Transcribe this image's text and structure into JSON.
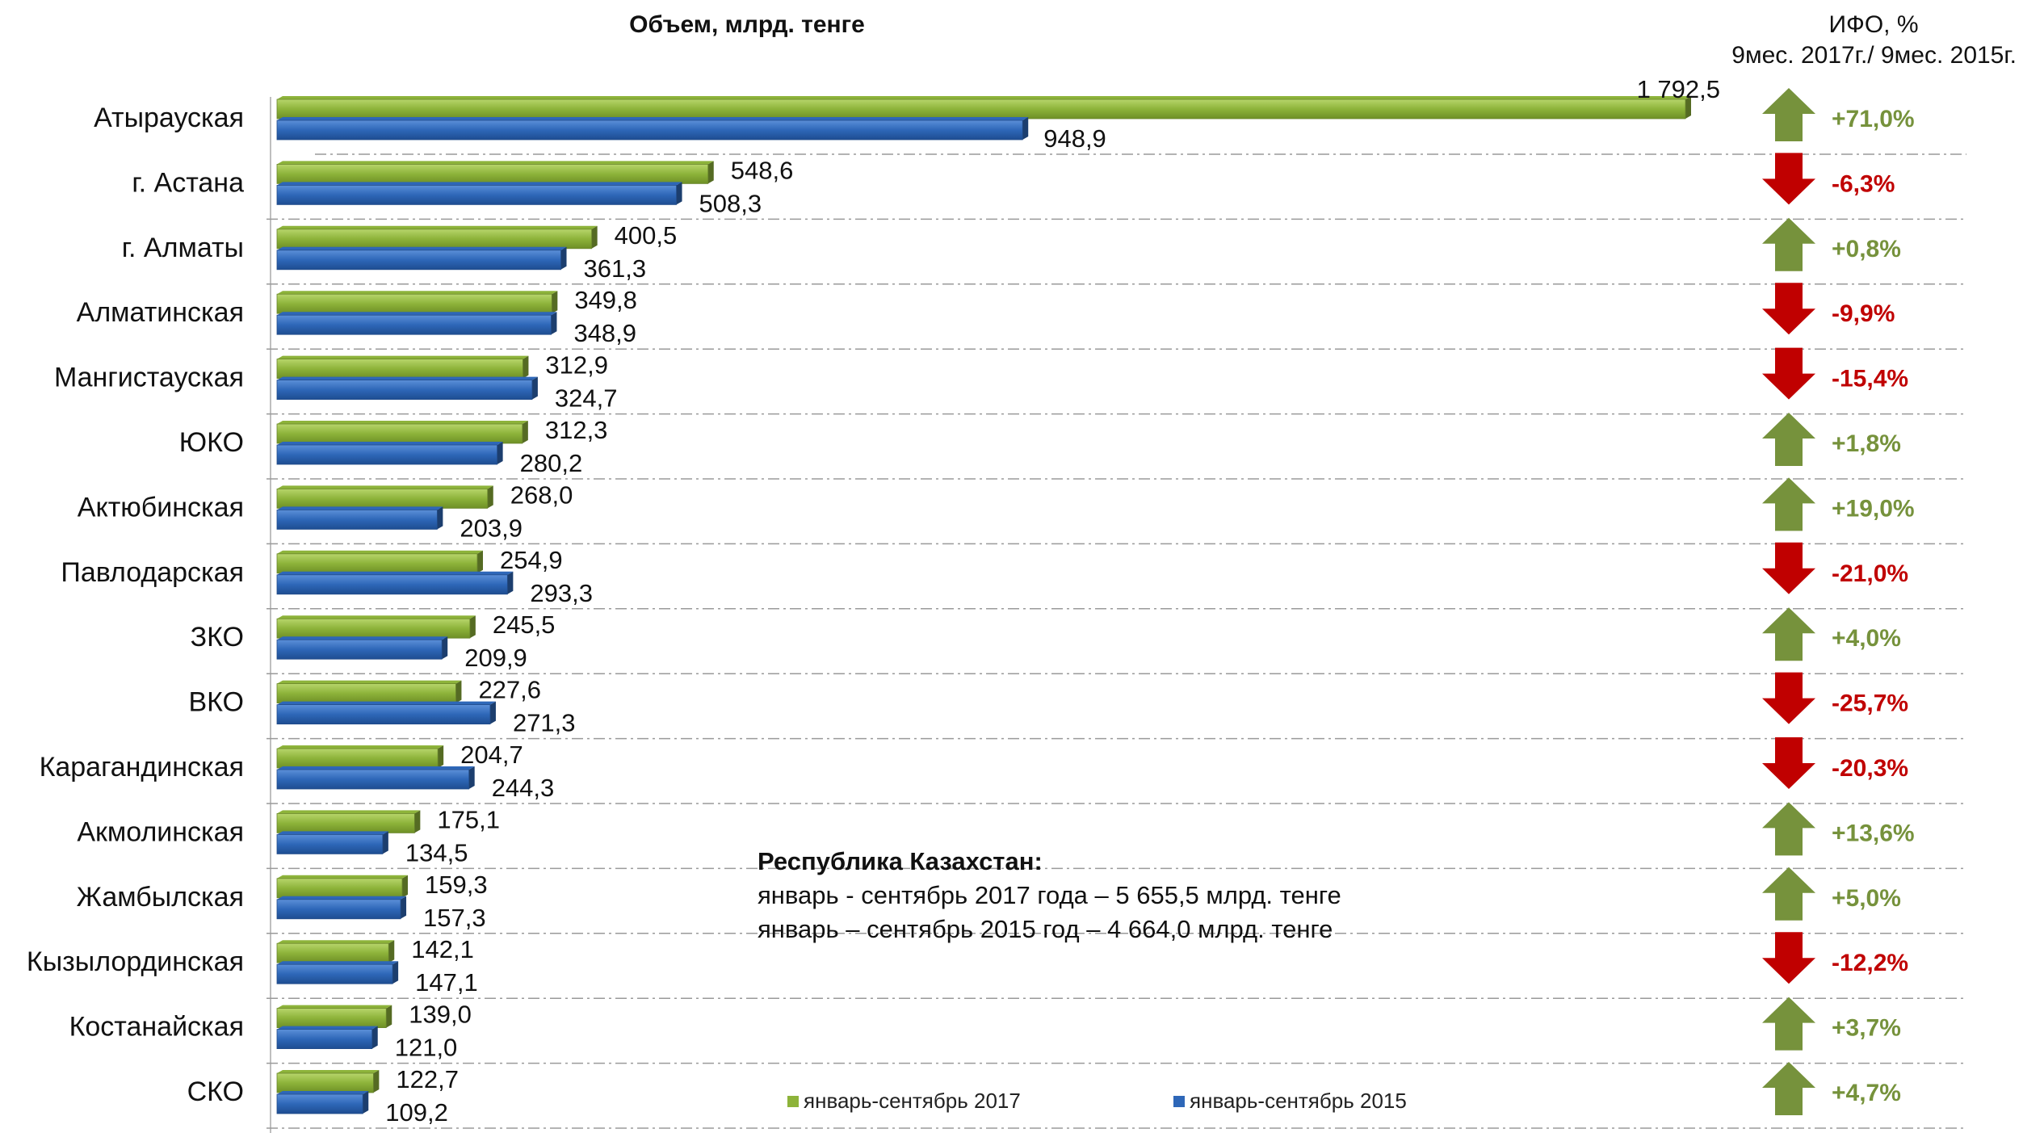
{
  "chart_data": {
    "type": "bar",
    "orientation": "horizontal",
    "title": "Объем, млрд. тенге",
    "right_title": [
      "ИФО, %",
      "9мес. 2017г./ 9мес. 2015г."
    ],
    "categories": [
      "Атырауская",
      "г. Астана",
      "г. Алматы",
      "Алматинская",
      "Мангистауская",
      "ЮКО",
      "Актюбинская",
      "Павлодарская",
      "ЗКО",
      "ВКО",
      "Карагандинская",
      "Акмолинская",
      "Жамбылская",
      "Кызылординская",
      "Костанайская",
      "СКО"
    ],
    "series": [
      {
        "name": "январь-сентябрь 2017",
        "color": "#8DB33A",
        "values": [
          1792.5,
          548.6,
          400.5,
          349.8,
          312.9,
          312.3,
          268.0,
          254.9,
          245.5,
          227.6,
          204.7,
          175.1,
          159.3,
          142.1,
          139.0,
          122.7
        ],
        "labels": [
          "1 792,5",
          "548,6",
          "400,5",
          "349,8",
          "312,9",
          "312,3",
          "268,0",
          "254,9",
          "245,5",
          "227,6",
          "204,7",
          "175,1",
          "159,3",
          "142,1",
          "139,0",
          "122,7"
        ]
      },
      {
        "name": "январь-сентябрь 2015",
        "color": "#2E67B8",
        "values": [
          948.9,
          508.3,
          361.3,
          348.9,
          324.7,
          280.2,
          203.9,
          293.3,
          209.9,
          271.3,
          244.3,
          134.5,
          157.3,
          147.1,
          121.0,
          109.2
        ],
        "labels": [
          "948,9",
          "508,3",
          "361,3",
          "348,9",
          "324,7",
          "280,2",
          "203,9",
          "293,3",
          "209,9",
          "271,3",
          "244,3",
          "134,5",
          "157,3",
          "147,1",
          "121,0",
          "109,2"
        ]
      }
    ],
    "ifo": [
      71.0,
      -6.3,
      0.8,
      -9.9,
      -15.4,
      1.8,
      19.0,
      -21.0,
      4.0,
      -25.7,
      -20.3,
      13.6,
      5.0,
      -12.2,
      3.7,
      4.7
    ],
    "ifo_labels": [
      "+71,0%",
      "-6,3%",
      "+0,8%",
      "-9,9%",
      "-15,4%",
      "+1,8%",
      "+19,0%",
      "-21,0%",
      "+4,0%",
      "-25,7%",
      "-20,3%",
      "+13,6%",
      "+5,0%",
      "-12,2%",
      "+3,7%",
      "+4,7%"
    ],
    "up_color": "#76923C",
    "down_color": "#C00000",
    "xlim": [
      0,
      1800
    ],
    "grid": "dashed row separators",
    "legend_position": "bottom"
  },
  "note": {
    "heading": "Республика Казахстан:",
    "line1": "январь - сентябрь 2017 года – 5 655,5 млрд. тенге",
    "line2": "январь – сентябрь 2015 год –  4 664,0 млрд. тенге"
  }
}
